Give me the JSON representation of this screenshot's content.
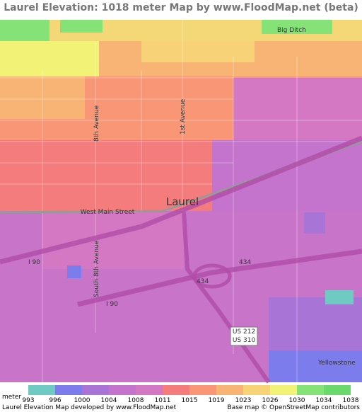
{
  "title": "Laurel Elevation: 1018 meter Map by www.FloodMap.net (beta)",
  "map_labels": {
    "town": "Laurel",
    "west_main": "West Main Street",
    "eighth_ave": "8th Avenue",
    "first_ave": "1st Avenue",
    "south_eighth": "South 8th Avenue",
    "i90_west": "I 90",
    "i90_south": "I 90",
    "r434_north": "434",
    "r434_south": "434",
    "us212": "US 212",
    "us310": "US 310",
    "big_ditch": "Big Ditch",
    "yellowstone": "Yellowstone"
  },
  "legend": {
    "unit": "meter",
    "ticks": [
      993,
      996,
      1000,
      1004,
      1008,
      1011,
      1015,
      1019,
      1023,
      1026,
      1030,
      1034,
      1038
    ],
    "colors": [
      "#6ecac2",
      "#7c7cec",
      "#a874d6",
      "#c474cc",
      "#d478c4",
      "#f47c7c",
      "#f89676",
      "#f8b474",
      "#f8d276",
      "#f2f276",
      "#84e276",
      "#6ad86a"
    ]
  },
  "footer": {
    "left": "Laurel Elevation Map developed by www.FloodMap.net",
    "right": "Base map © OpenStreetMap contributors"
  }
}
